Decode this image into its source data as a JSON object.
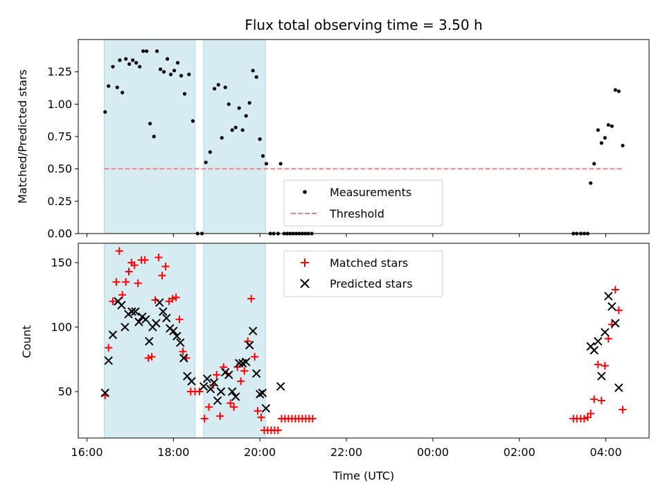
{
  "chart_data": [
    {
      "type": "scatter",
      "title": "Flux total observing time = 3.50 h",
      "xlabel": "",
      "ylabel": "Matched/Predicted stars",
      "xlim": [
        15.8,
        29.0
      ],
      "ylim": [
        0.0,
        1.5
      ],
      "yticks": [
        0.0,
        0.25,
        0.5,
        0.75,
        1.0,
        1.25
      ],
      "ytick_labels": [
        "0.00",
        "0.25",
        "0.50",
        "0.75",
        "1.00",
        "1.25"
      ],
      "shaded_intervals": [
        [
          16.4,
          18.5
        ],
        [
          18.7,
          20.13
        ]
      ],
      "threshold": {
        "value": 0.5,
        "x_range": [
          16.4,
          28.4
        ],
        "color": "#f08080"
      },
      "legend": [
        "Measurements",
        "Threshold"
      ],
      "series": [
        {
          "name": "Measurements",
          "color": "#000000",
          "points": [
            [
              16.42,
              0.94
            ],
            [
              16.5,
              1.14
            ],
            [
              16.6,
              1.29
            ],
            [
              16.7,
              1.13
            ],
            [
              16.76,
              1.34
            ],
            [
              16.82,
              1.09
            ],
            [
              16.9,
              1.35
            ],
            [
              16.98,
              1.31
            ],
            [
              17.06,
              1.34
            ],
            [
              17.14,
              1.32
            ],
            [
              17.22,
              1.29
            ],
            [
              17.3,
              1.41
            ],
            [
              17.38,
              1.41
            ],
            [
              17.46,
              0.85
            ],
            [
              17.55,
              0.75
            ],
            [
              17.62,
              1.41
            ],
            [
              17.7,
              1.27
            ],
            [
              17.78,
              1.25
            ],
            [
              17.86,
              1.35
            ],
            [
              17.94,
              1.23
            ],
            [
              18.02,
              1.26
            ],
            [
              18.1,
              1.32
            ],
            [
              18.18,
              1.22
            ],
            [
              18.26,
              1.08
            ],
            [
              18.36,
              1.23
            ],
            [
              18.45,
              0.87
            ],
            [
              18.56,
              0.0
            ],
            [
              18.66,
              0.0
            ],
            [
              18.75,
              0.55
            ],
            [
              18.85,
              0.63
            ],
            [
              18.95,
              1.12
            ],
            [
              19.04,
              1.15
            ],
            [
              19.12,
              0.74
            ],
            [
              19.2,
              1.13
            ],
            [
              19.28,
              1.0
            ],
            [
              19.36,
              0.8
            ],
            [
              19.44,
              0.82
            ],
            [
              19.52,
              0.97
            ],
            [
              19.6,
              0.8
            ],
            [
              19.68,
              0.91
            ],
            [
              19.76,
              1.01
            ],
            [
              19.84,
              1.26
            ],
            [
              19.92,
              1.21
            ],
            [
              20.0,
              0.73
            ],
            [
              20.07,
              0.6
            ],
            [
              20.15,
              0.54
            ],
            [
              20.24,
              0.0
            ],
            [
              20.32,
              0.0
            ],
            [
              20.42,
              0.0
            ],
            [
              20.48,
              0.54
            ],
            [
              20.56,
              0.0
            ],
            [
              20.63,
              0.0
            ],
            [
              20.7,
              0.0
            ],
            [
              20.77,
              0.0
            ],
            [
              20.84,
              0.0
            ],
            [
              20.91,
              0.0
            ],
            [
              20.98,
              0.0
            ],
            [
              21.05,
              0.0
            ],
            [
              21.12,
              0.0
            ],
            [
              21.2,
              0.0
            ],
            [
              27.25,
              0.0
            ],
            [
              27.33,
              0.0
            ],
            [
              27.42,
              0.0
            ],
            [
              27.5,
              0.0
            ],
            [
              27.58,
              0.0
            ],
            [
              27.65,
              0.39
            ],
            [
              27.73,
              0.54
            ],
            [
              27.82,
              0.8
            ],
            [
              27.9,
              0.7
            ],
            [
              27.98,
              0.74
            ],
            [
              28.06,
              0.84
            ],
            [
              28.14,
              0.83
            ],
            [
              28.22,
              1.11
            ],
            [
              28.3,
              1.1
            ],
            [
              28.39,
              0.68
            ]
          ]
        }
      ]
    },
    {
      "type": "scatter",
      "title": "",
      "xlabel": "Time (UTC)",
      "ylabel": "Count",
      "xlim": [
        15.8,
        29.0
      ],
      "ylim": [
        14,
        165
      ],
      "yticks": [
        50,
        100,
        150
      ],
      "ytick_labels": [
        "50",
        "100",
        "150"
      ],
      "xticks": [
        16,
        18,
        20,
        22,
        24,
        26,
        28
      ],
      "xtick_labels": [
        "16:00",
        "18:00",
        "20:00",
        "22:00",
        "00:00",
        "02:00",
        "04:00"
      ],
      "shaded_intervals": [
        [
          16.4,
          18.5
        ],
        [
          18.7,
          20.13
        ]
      ],
      "legend": [
        "Matched stars",
        "Predicted stars"
      ],
      "series": [
        {
          "name": "Matched stars",
          "color": "#ff0000",
          "marker": "+",
          "points": [
            [
              16.42,
              47
            ],
            [
              16.5,
              84
            ],
            [
              16.6,
              120
            ],
            [
              16.68,
              135
            ],
            [
              16.75,
              159
            ],
            [
              16.82,
              125
            ],
            [
              16.9,
              135
            ],
            [
              16.97,
              143
            ],
            [
              17.03,
              150
            ],
            [
              17.1,
              148
            ],
            [
              17.18,
              134
            ],
            [
              17.26,
              152
            ],
            [
              17.34,
              152
            ],
            [
              17.42,
              76
            ],
            [
              17.5,
              77
            ],
            [
              17.58,
              121
            ],
            [
              17.66,
              154
            ],
            [
              17.74,
              140
            ],
            [
              17.82,
              147
            ],
            [
              17.9,
              120
            ],
            [
              17.98,
              122
            ],
            [
              18.06,
              123
            ],
            [
              18.14,
              106
            ],
            [
              18.22,
              81
            ],
            [
              18.3,
              76
            ],
            [
              18.4,
              50
            ],
            [
              18.5,
              50
            ],
            [
              18.6,
              50
            ],
            [
              18.72,
              29
            ],
            [
              18.82,
              38
            ],
            [
              18.92,
              55
            ],
            [
              19.0,
              63
            ],
            [
              19.08,
              31
            ],
            [
              19.16,
              69
            ],
            [
              19.24,
              64
            ],
            [
              19.32,
              41
            ],
            [
              19.4,
              38
            ],
            [
              19.48,
              69
            ],
            [
              19.56,
              58
            ],
            [
              19.64,
              66
            ],
            [
              19.72,
              89
            ],
            [
              19.8,
              122
            ],
            [
              19.88,
              77
            ],
            [
              19.95,
              35
            ],
            [
              20.03,
              30
            ],
            [
              20.1,
              20
            ],
            [
              20.18,
              20
            ],
            [
              20.26,
              20
            ],
            [
              20.34,
              20
            ],
            [
              20.42,
              20
            ],
            [
              20.5,
              29
            ],
            [
              20.58,
              29
            ],
            [
              20.66,
              29
            ],
            [
              20.74,
              29
            ],
            [
              20.82,
              29
            ],
            [
              20.9,
              29
            ],
            [
              20.98,
              29
            ],
            [
              21.06,
              29
            ],
            [
              21.14,
              29
            ],
            [
              21.22,
              29
            ],
            [
              27.25,
              29
            ],
            [
              27.33,
              29
            ],
            [
              27.42,
              29
            ],
            [
              27.5,
              29
            ],
            [
              27.58,
              30
            ],
            [
              27.65,
              33
            ],
            [
              27.73,
              44
            ],
            [
              27.82,
              71
            ],
            [
              27.9,
              43
            ],
            [
              27.98,
              70
            ],
            [
              28.06,
              91
            ],
            [
              28.14,
              102
            ],
            [
              28.22,
              129
            ],
            [
              28.3,
              113
            ],
            [
              28.39,
              36
            ]
          ]
        },
        {
          "name": "Predicted stars",
          "color": "#000000",
          "marker": "x",
          "points": [
            [
              16.42,
              49
            ],
            [
              16.5,
              74
            ],
            [
              16.6,
              94
            ],
            [
              16.72,
              120
            ],
            [
              16.8,
              117
            ],
            [
              16.88,
              100
            ],
            [
              16.96,
              110
            ],
            [
              17.04,
              112
            ],
            [
              17.12,
              112
            ],
            [
              17.2,
              104
            ],
            [
              17.28,
              108
            ],
            [
              17.36,
              106
            ],
            [
              17.44,
              89
            ],
            [
              17.52,
              100
            ],
            [
              17.6,
              103
            ],
            [
              17.68,
              119
            ],
            [
              17.76,
              112
            ],
            [
              17.84,
              107
            ],
            [
              17.92,
              99
            ],
            [
              18.0,
              97
            ],
            [
              18.08,
              93
            ],
            [
              18.16,
              88
            ],
            [
              18.24,
              76
            ],
            [
              18.32,
              62
            ],
            [
              18.42,
              58
            ],
            [
              18.7,
              54
            ],
            [
              18.78,
              60
            ],
            [
              18.86,
              52
            ],
            [
              18.94,
              57
            ],
            [
              19.02,
              43
            ],
            [
              19.1,
              50
            ],
            [
              19.2,
              65
            ],
            [
              19.28,
              63
            ],
            [
              19.36,
              50
            ],
            [
              19.44,
              46
            ],
            [
              19.52,
              72
            ],
            [
              19.6,
              72
            ],
            [
              19.68,
              73
            ],
            [
              19.76,
              86
            ],
            [
              19.84,
              97
            ],
            [
              19.92,
              64
            ],
            [
              20.0,
              48
            ],
            [
              20.06,
              49
            ],
            [
              20.14,
              37
            ],
            [
              20.48,
              54
            ],
            [
              27.65,
              85
            ],
            [
              27.73,
              82
            ],
            [
              27.82,
              89
            ],
            [
              27.9,
              62
            ],
            [
              27.98,
              96
            ],
            [
              28.06,
              124
            ],
            [
              28.14,
              116
            ],
            [
              28.22,
              103
            ],
            [
              28.3,
              53
            ]
          ]
        }
      ]
    }
  ]
}
